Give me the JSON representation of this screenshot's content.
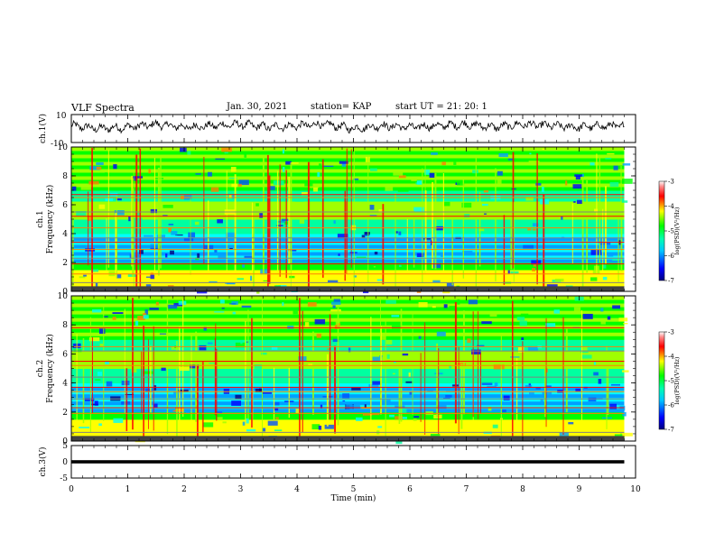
{
  "header": {
    "title": "VLF Spectra",
    "date": "Jan. 30, 2021",
    "station": "station= KAP",
    "start_ut": "start UT =  21: 20: 1"
  },
  "colors": {
    "colormap": [
      "#000080",
      "#0000ff",
      "#00ffff",
      "#00ff00",
      "#ffff00",
      "#ff0000",
      "#ff8080",
      "#ffffff"
    ],
    "trace": "#000000"
  },
  "chart_data": [
    {
      "type": "line",
      "panel": "ch1-waveform",
      "ylabel": "ch.1(V)",
      "ylim": [
        -10,
        10
      ],
      "yticks": [
        10,
        -10
      ],
      "xlim": [
        0,
        10
      ],
      "description_series": "noisy voltage trace oscillating mostly between about -4 V and +7 V across 0–9.8 min",
      "x": [
        0.0,
        0.5,
        1.0,
        1.5,
        2.0,
        2.5,
        3.0,
        3.5,
        4.0,
        4.5,
        5.0,
        5.5,
        6.0,
        6.5,
        7.0,
        7.5,
        8.0,
        8.5,
        9.0,
        9.5,
        9.8
      ],
      "y": [
        2,
        0,
        1,
        3,
        1,
        2,
        3,
        1,
        2,
        3,
        0,
        2,
        1,
        2,
        3,
        1,
        3,
        2,
        1,
        2,
        2
      ]
    },
    {
      "type": "heatmap",
      "panel": "ch1-spectrogram",
      "ylabel": "ch.1\nFrequency (kHz)",
      "xlim": [
        0,
        10
      ],
      "ylim": [
        0,
        10
      ],
      "yticks": [
        0,
        2,
        4,
        6,
        8,
        10
      ],
      "colorbar": {
        "label": "log(PSD)(V²/Hz)",
        "ticks": [
          -3,
          -4,
          -5,
          -6,
          -7
        ],
        "range": [
          -7,
          -3
        ]
      },
      "bands_khz": [
        0.3,
        0.6,
        1.2,
        1.9,
        2.3,
        2.9,
        3.4,
        3.7,
        4.4,
        5.2,
        5.5,
        6.5,
        6.7
      ],
      "time_extent_min": 9.8
    },
    {
      "type": "heatmap",
      "panel": "ch2-spectrogram",
      "ylabel": "ch.2\nFrequency (kHz)",
      "xlim": [
        0,
        10
      ],
      "ylim": [
        0,
        10
      ],
      "yticks": [
        0,
        2,
        4,
        6,
        8,
        10
      ],
      "colorbar": {
        "label": "log(PSD)(V²/Hz)",
        "ticks": [
          -3,
          -4,
          -5,
          -6,
          -7
        ],
        "range": [
          -7,
          -3
        ]
      },
      "bands_khz": [
        0.3,
        0.6,
        1.9,
        2.3,
        2.9,
        3.4,
        3.7,
        4.4,
        5.2,
        5.5,
        6.2,
        6.5,
        7.8
      ],
      "time_extent_min": 9.8
    },
    {
      "type": "line",
      "panel": "ch3-waveform",
      "ylabel": "ch.3(V)",
      "ylim": [
        -5,
        5
      ],
      "yticks": [
        5,
        0,
        -5
      ],
      "xlim": [
        0,
        10
      ],
      "x": [
        0,
        9.8
      ],
      "y": [
        0,
        0
      ],
      "xlabel": "Time (min)",
      "xticks": [
        "0",
        "1",
        "2",
        "3",
        "4",
        "5",
        "6",
        "7",
        "8",
        "9",
        "10"
      ]
    }
  ]
}
